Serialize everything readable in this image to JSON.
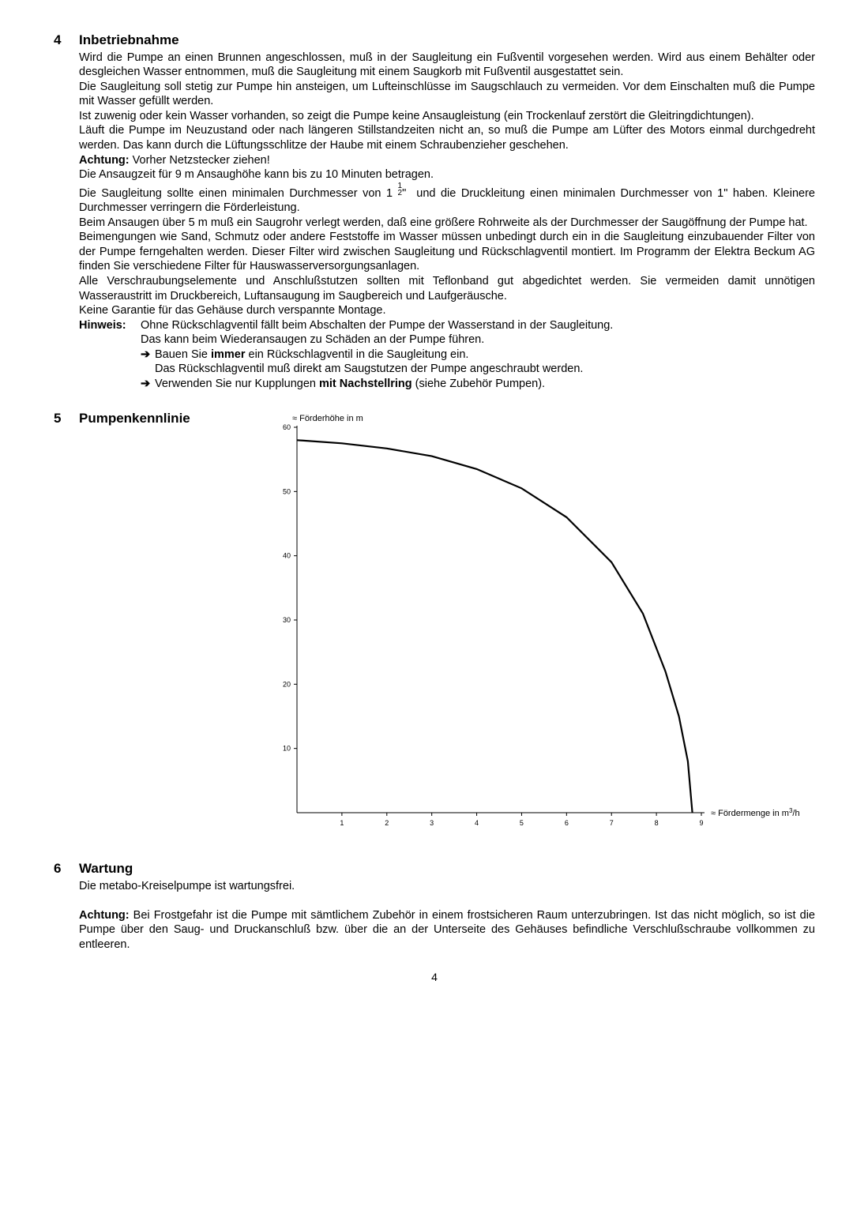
{
  "sections": [
    {
      "num": "4",
      "title": "Inbetriebnahme",
      "body_html": "Wird die Pumpe an einen Brunnen angeschlossen, muß in der Saugleitung ein Fußventil vorgesehen werden. Wird aus einem Behälter oder desgleichen Wasser entnommen, muß die Saugleitung mit einem Saugkorb mit Fußventil ausgestattet sein.<br>Die Saugleitung soll stetig zur Pumpe hin ansteigen, um Lufteinschlüsse im Saugschlauch zu vermeiden. Vor dem Einschalten muß die Pumpe mit Wasser gefüllt werden.<br>Ist zuwenig oder kein Wasser vorhanden, so zeigt die Pumpe keine Ansaugleistung (ein Trockenlauf zerstört die Gleitringdichtungen).<br>Läuft die Pumpe im Neuzustand oder nach längeren Stillstandzeiten nicht an, so muß die Pumpe am Lüfter des Motors einmal durchgedreht werden. Das kann durch die Lüftungsschlitze der Haube mit einem Schraubenzieher geschehen.<br><span class=\"bold-run\">Achtung:</span> Vorher Netzstecker ziehen!<br>Die Ansaugzeit für 9 m Ansaughöhe kann bis zu 10 Minuten betragen.<br>Die Saugleitung sollte einen minimalen Durchmesser von 1 <span class=\"frac\"><span class=\"n\">1</span><span class=\"d\">2</span></span>\"  und die Druckleitung einen minimalen Durchmesser von 1\" haben. Kleinere Durchmesser verringern die Förderleistung.<br>Beim Ansaugen über 5 m muß ein Saugrohr verlegt werden, daß eine größere Rohrweite als der Durchmesser der Saugöffnung der Pumpe hat.<br>Beimengungen wie Sand, Schmutz oder andere Feststoffe im Wasser müssen unbedingt durch ein in die Saugleitung einzubauender Filter von der Pumpe ferngehalten werden. Dieser Filter wird zwischen Saugleitung und Rückschlagventil montiert. Im Programm der Elektra Beckum AG finden Sie verschiedene Filter für Hauswasserversorgungsanlagen.<br>Alle Verschraubungselemente und Anschlußstutzen sollten mit Teflonband gut abgedichtet werden. Sie vermeiden damit unnötigen Wasseraustritt im Druckbereich, Luftansaugung im Saugbereich und Laufgeräusche.<br>Keine Garantie für das Gehäuse durch verspannte Montage.",
      "hinweis": {
        "label": "Hinweis:",
        "line1": "Ohne Rückschlagventil fällt beim Abschalten der Pumpe der Wasserstand in der Saugleitung.",
        "line2": "Das kann beim Wiederansaugen zu Schäden an der Pumpe führen.",
        "bullets": [
          {
            "pre": "Bauen Sie ",
            "bold": "immer",
            "post": " ein Rückschlagventil in die Saugleitung ein."
          },
          {
            "cont": "Das Rückschlagventil muß direkt am Saugstutzen der Pumpe angeschraubt werden."
          },
          {
            "pre": "Verwenden Sie nur Kupplungen ",
            "bold": "mit Nachstellring",
            "post": " (siehe Zubehör Pumpen)."
          }
        ]
      }
    },
    {
      "num": "5",
      "title": "Pumpenkennlinie",
      "chart": {
        "y_label": "Förderhöhe in m",
        "x_label_pre": "Fördermenge in m",
        "x_label_sup": "3",
        "x_label_post": "/h",
        "y_ticks": [
          10,
          20,
          30,
          40,
          50,
          60
        ],
        "x_ticks": [
          1,
          2,
          3,
          4,
          5,
          6,
          7,
          8,
          9
        ],
        "ylim": [
          0,
          60
        ],
        "xlim": [
          0,
          9
        ],
        "curve_points": [
          [
            0,
            58
          ],
          [
            1,
            57.5
          ],
          [
            2,
            56.7
          ],
          [
            3,
            55.5
          ],
          [
            4,
            53.5
          ],
          [
            5,
            50.5
          ],
          [
            6,
            46
          ],
          [
            7,
            39
          ],
          [
            7.7,
            31
          ],
          [
            8.2,
            22
          ],
          [
            8.5,
            15
          ],
          [
            8.7,
            8
          ],
          [
            8.8,
            0
          ]
        ],
        "line_color": "#000000",
        "line_width": 2.2,
        "axis_color": "#000000",
        "tick_fontsize": 9,
        "label_fontsize": 11
      }
    },
    {
      "num": "6",
      "title": "Wartung",
      "body_html": "Die metabo-Kreiselpumpe ist wartungsfrei.<br><br><span class=\"bold-run\">Achtung:</span> Bei Frostgefahr ist die Pumpe mit sämtlichem Zubehör in einem frostsicheren Raum unterzubringen. Ist das nicht möglich, so ist die Pumpe über den Saug- und Druckanschluß bzw. über die an der Unterseite des Gehäuses befindliche Verschlußschraube vollkommen zu entleeren."
    }
  ],
  "page_number": "4"
}
